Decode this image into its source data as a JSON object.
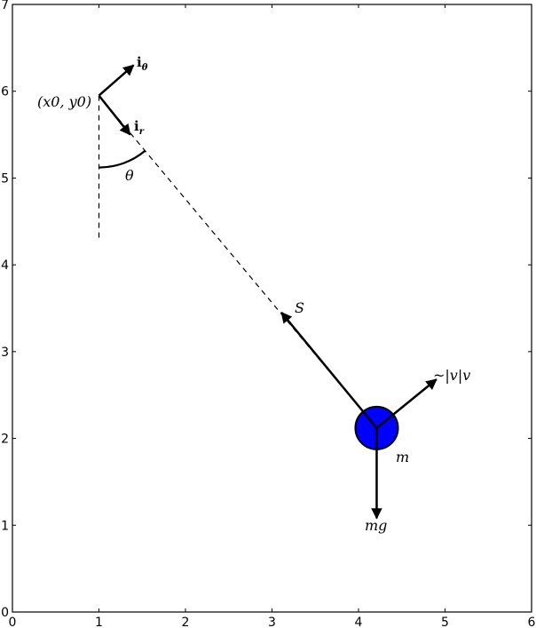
{
  "diagram": {
    "axes": {
      "xlim": [
        0,
        6
      ],
      "ylim": [
        0,
        7
      ],
      "xticks": [
        "0",
        "1",
        "2",
        "3",
        "4",
        "5",
        "6"
      ],
      "yticks": [
        "0",
        "1",
        "2",
        "3",
        "4",
        "5",
        "6",
        "7"
      ]
    },
    "pivot": {
      "x": 1,
      "y": 5.95,
      "label": "(x0, y0)"
    },
    "mass": {
      "x": 4.21,
      "y": 2.12,
      "label": "m",
      "color": "#0000ff"
    },
    "vertical_reference_end": {
      "x": 1,
      "y": 4.3
    },
    "unit_vectors": [
      {
        "label": "i",
        "subscript": "θ",
        "to": {
          "x": 1.4,
          "y": 6.3
        }
      },
      {
        "label": "i",
        "subscript": "r",
        "to": {
          "x": 1.36,
          "y": 5.5
        }
      }
    ],
    "angle_label": "θ",
    "forces": [
      {
        "label": "S",
        "to": {
          "x": 3.11,
          "y": 3.45
        }
      },
      {
        "label": "~|v|v",
        "to": {
          "x": 4.9,
          "y": 2.68
        }
      },
      {
        "label": "mg",
        "to": {
          "x": 4.21,
          "y": 1.08
        }
      }
    ]
  }
}
